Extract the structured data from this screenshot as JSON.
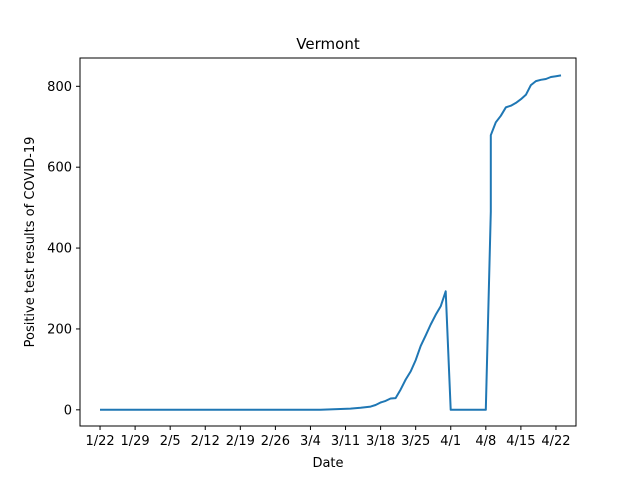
{
  "chart_data": {
    "type": "line",
    "title": "Vermont",
    "xlabel": "Date",
    "ylabel": "Positive test results of COVID-19",
    "x_tick_labels": [
      "1/22",
      "1/29",
      "2/5",
      "2/12",
      "2/19",
      "2/26",
      "3/4",
      "3/11",
      "3/18",
      "3/25",
      "4/1",
      "4/8",
      "4/15",
      "4/22"
    ],
    "x_tick_values": [
      "2020-01-22",
      "2020-01-29",
      "2020-02-05",
      "2020-02-12",
      "2020-02-19",
      "2020-02-26",
      "2020-03-04",
      "2020-03-11",
      "2020-03-18",
      "2020-03-25",
      "2020-04-01",
      "2020-04-08",
      "2020-04-15",
      "2020-04-22"
    ],
    "y_ticks": [
      0,
      200,
      400,
      600,
      800
    ],
    "xlim": [
      "2020-01-18",
      "2020-04-26"
    ],
    "ylim": [
      -40,
      870
    ],
    "grid": false,
    "color": "#1f77b4",
    "series": [
      {
        "points": [
          [
            "2020-01-22",
            0
          ],
          [
            "2020-03-06",
            0
          ],
          [
            "2020-03-08",
            1
          ],
          [
            "2020-03-10",
            2
          ],
          [
            "2020-03-12",
            3
          ],
          [
            "2020-03-14",
            5
          ],
          [
            "2020-03-16",
            8
          ],
          [
            "2020-03-17",
            12
          ],
          [
            "2020-03-18",
            18
          ],
          [
            "2020-03-19",
            22
          ],
          [
            "2020-03-20",
            28
          ],
          [
            "2020-03-21",
            29
          ],
          [
            "2020-03-22",
            50
          ],
          [
            "2020-03-23",
            75
          ],
          [
            "2020-03-24",
            95
          ],
          [
            "2020-03-25",
            123
          ],
          [
            "2020-03-26",
            158
          ],
          [
            "2020-03-27",
            184
          ],
          [
            "2020-03-28",
            211
          ],
          [
            "2020-03-29",
            235
          ],
          [
            "2020-03-30",
            256
          ],
          [
            "2020-03-31",
            293
          ],
          [
            "2020-04-01",
            0
          ],
          [
            "2020-04-08",
            0
          ],
          [
            "2020-04-09",
            490
          ],
          [
            "2020-04-09",
            679
          ],
          [
            "2020-04-10",
            711
          ],
          [
            "2020-04-11",
            727
          ],
          [
            "2020-04-12",
            748
          ],
          [
            "2020-04-13",
            752
          ],
          [
            "2020-04-14",
            759
          ],
          [
            "2020-04-15",
            768
          ],
          [
            "2020-04-16",
            779
          ],
          [
            "2020-04-17",
            803
          ],
          [
            "2020-04-18",
            813
          ],
          [
            "2020-04-19",
            816
          ],
          [
            "2020-04-20",
            818
          ],
          [
            "2020-04-21",
            823
          ],
          [
            "2020-04-22",
            825
          ],
          [
            "2020-04-23",
            827
          ]
        ]
      }
    ]
  }
}
